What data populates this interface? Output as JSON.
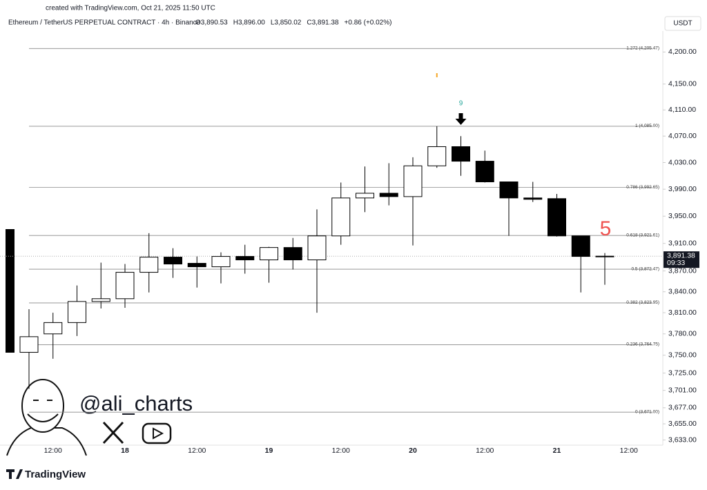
{
  "chart_data": {
    "type": "candlestick",
    "created_note": "created with TradingView.com, Oct 21, 2025 11:50 UTC",
    "title": "Ethereum / TetherUS PERPETUAL CONTRACT · 4h · Binance",
    "legend_values": [
      "O3,890.53",
      "H3,896.00",
      "L3,850.02",
      "C3,891.38",
      "+0.86 (+0.02%)"
    ],
    "currency": "USDT",
    "watermark": "@ali_charts",
    "brand": "TradingView",
    "log_scale": true,
    "categories": [
      null,
      "12:00",
      null,
      null,
      "18",
      null,
      null,
      "12:00",
      null,
      null,
      "19",
      null,
      null,
      "12:00",
      null,
      null,
      "20",
      null,
      null,
      "12:00",
      null,
      null,
      "21",
      null,
      null,
      "12:00"
    ],
    "open": [
      3754,
      3780,
      3796,
      3826,
      3830,
      3868,
      3890,
      3881,
      3876,
      3891,
      3886,
      3904,
      3886,
      3921,
      3977,
      3984,
      3979,
      4025,
      4054,
      4032,
      4001,
      3977,
      3976,
      3921,
      3890.53,
      null
    ],
    "high": [
      3815,
      3810,
      3849,
      3882,
      3880,
      3925,
      3903,
      3891,
      3897,
      3908,
      3905,
      3918,
      3960,
      4000,
      4024,
      4029,
      4038,
      4085,
      4070,
      4048,
      4001,
      4001,
      3983,
      3921,
      3896,
      null
    ],
    "low": [
      3703,
      3745,
      3777,
      3816,
      3817,
      3839,
      3860,
      3846,
      3852,
      3866,
      3853,
      3872,
      3810,
      3908,
      3956,
      3966,
      3907,
      4022,
      4010,
      4000,
      3921,
      3971,
      3920,
      3839,
      3850.02,
      null
    ],
    "close": [
      3776,
      3796,
      3826,
      3830,
      3868,
      3890,
      3880,
      3876,
      3891,
      3886,
      3904,
      3886,
      3921,
      3977,
      3984,
      3979,
      4025,
      4054,
      4032,
      4001,
      3977,
      3975,
      3921,
      3891,
      3891.38,
      null
    ],
    "up_color": "#ffffff",
    "down_color": "#000000",
    "ylim": [
      3626,
      4233
    ],
    "yticks": [
      {
        "value": 4200,
        "label": "4,200.00"
      },
      {
        "value": 4150,
        "label": "4,150.00"
      },
      {
        "value": 4110,
        "label": "4,110.00"
      },
      {
        "value": 4070,
        "label": "4,070.00"
      },
      {
        "value": 4030,
        "label": "4,030.00"
      },
      {
        "value": 3990,
        "label": "3,990.00"
      },
      {
        "value": 3950,
        "label": "3,950.00"
      },
      {
        "value": 3910,
        "label": "3,910.00"
      },
      {
        "value": 3870,
        "label": "3,870.00"
      },
      {
        "value": 3840,
        "label": "3,840.00"
      },
      {
        "value": 3810,
        "label": "3,810.00"
      },
      {
        "value": 3780,
        "label": "3,780.00"
      },
      {
        "value": 3750,
        "label": "3,750.00"
      },
      {
        "value": 3725,
        "label": "3,725.00"
      },
      {
        "value": 3701,
        "label": "3,701.00"
      },
      {
        "value": 3677,
        "label": "3,677.00"
      },
      {
        "value": 3655,
        "label": "3,655.00"
      },
      {
        "value": 3633,
        "label": "3,633.00"
      }
    ],
    "fib_levels": [
      {
        "price": 4205.47,
        "label": "1.272 (4,205.47)"
      },
      {
        "price": 4085.0,
        "label": "1 (4,085.00)"
      },
      {
        "price": 3992.65,
        "label": "0.786 (3,992.65)"
      },
      {
        "price": 3921.61,
        "label": "0.618 (3,921.61)"
      },
      {
        "price": 3872.47,
        "label": "0.5 (3,872.47)"
      },
      {
        "price": 3823.95,
        "label": "0.382 (3,823.95)"
      },
      {
        "price": 3764.75,
        "label": "0.236 (3,764.75)"
      },
      {
        "price": 3671.0,
        "label": "0 (3,671.00)"
      }
    ],
    "last_price": {
      "value": 3891.38,
      "label": "3,891.38"
    },
    "countdown": "09:33",
    "sequential_label": "9",
    "count_label": "5"
  }
}
